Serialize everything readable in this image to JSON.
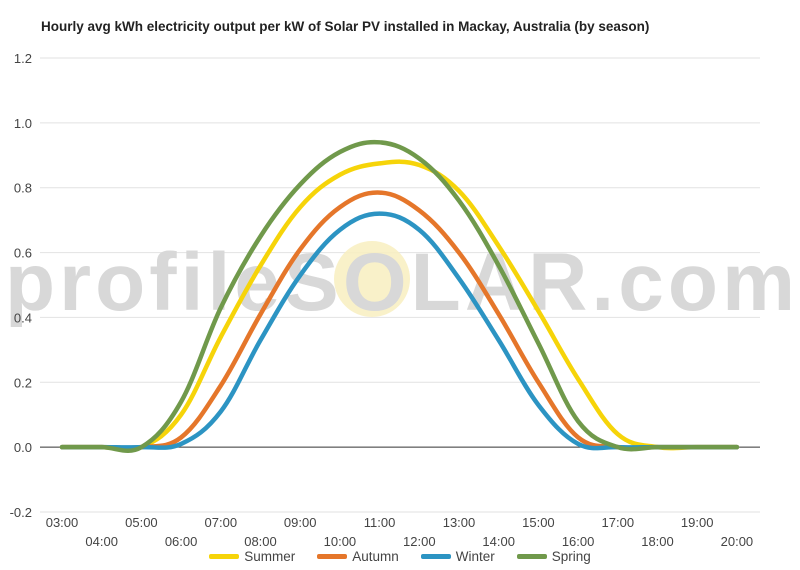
{
  "chart_data": {
    "type": "line",
    "title": "Hourly avg kWh electricity output per kW of Solar PV installed in Mackay, Australia (by season)",
    "xlabel": "",
    "ylabel": "",
    "watermark": "profileSOLAR.com",
    "categories": [
      "03:00",
      "04:00",
      "05:00",
      "06:00",
      "07:00",
      "08:00",
      "09:00",
      "10:00",
      "11:00",
      "12:00",
      "13:00",
      "14:00",
      "15:00",
      "16:00",
      "17:00",
      "18:00",
      "19:00",
      "20:00"
    ],
    "ylim": [
      -0.2,
      1.2
    ],
    "yticks": [
      "-0.2",
      "0.0",
      "0.2",
      "0.4",
      "0.6",
      "0.8",
      "1.0",
      "1.2"
    ],
    "grid": true,
    "legend_position": "bottom",
    "series": [
      {
        "name": "Summer",
        "color": "#f6d409",
        "values": [
          0,
          0,
          0,
          0.1,
          0.34,
          0.56,
          0.74,
          0.84,
          0.875,
          0.87,
          0.79,
          0.62,
          0.42,
          0.21,
          0.04,
          0,
          0,
          0
        ]
      },
      {
        "name": "Autumn",
        "color": "#e5762a",
        "values": [
          0,
          0,
          0,
          0.03,
          0.19,
          0.41,
          0.61,
          0.74,
          0.785,
          0.73,
          0.6,
          0.41,
          0.2,
          0.03,
          0,
          0,
          0,
          0
        ]
      },
      {
        "name": "Winter",
        "color": "#2c94c3",
        "values": [
          0,
          0,
          0,
          0.01,
          0.11,
          0.33,
          0.53,
          0.67,
          0.72,
          0.67,
          0.52,
          0.33,
          0.13,
          0.01,
          0,
          0,
          0,
          0
        ]
      },
      {
        "name": "Spring",
        "color": "#70994b",
        "values": [
          0,
          0,
          0,
          0.14,
          0.43,
          0.65,
          0.81,
          0.91,
          0.94,
          0.89,
          0.76,
          0.56,
          0.32,
          0.08,
          0,
          0,
          0,
          0
        ]
      }
    ]
  }
}
